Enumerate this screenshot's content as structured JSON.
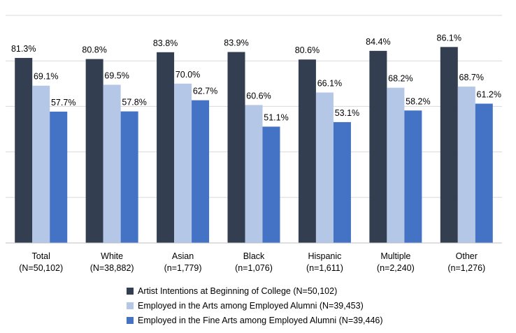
{
  "chart_data": {
    "type": "bar",
    "title": "",
    "xlabel": "",
    "ylabel": "",
    "ylim": [
      0,
      100
    ],
    "grid": true,
    "legend_position": "bottom",
    "categories": [
      {
        "name": "Total",
        "n": "(N=50,102)"
      },
      {
        "name": "White",
        "n": "(N=38,882)"
      },
      {
        "name": "Asian",
        "n": "(n=1,779)"
      },
      {
        "name": "Black",
        "n": "(n=1,076)"
      },
      {
        "name": "Hispanic",
        "n": "(n=1,611)"
      },
      {
        "name": "Multiple",
        "n": "(n=2,240)"
      },
      {
        "name": "Other",
        "n": "(n=1,276)"
      }
    ],
    "series": [
      {
        "name": "Artist Intentions at Beginning of College (N=50,102)",
        "color": "#333f50",
        "values": [
          81.3,
          80.8,
          83.8,
          83.9,
          80.6,
          84.4,
          86.1
        ],
        "labels": [
          "81.3%",
          "80.8%",
          "83.8%",
          "83.9%",
          "80.6%",
          "84.4%",
          "86.1%"
        ]
      },
      {
        "name": "Employed in the Arts among Employed Alumni (N=39,453)",
        "color": "#b4c7e7",
        "values": [
          69.1,
          69.5,
          70.0,
          60.6,
          66.1,
          68.2,
          68.7
        ],
        "labels": [
          "69.1%",
          "69.5%",
          "70.0%",
          "60.6%",
          "66.1%",
          "68.2%",
          "68.7%"
        ]
      },
      {
        "name": "Employed in the Fine Arts among Employed Alumni (N=39,446)",
        "color": "#4472c4",
        "values": [
          57.7,
          57.8,
          62.7,
          51.1,
          53.1,
          58.2,
          61.2
        ],
        "labels": [
          "57.7%",
          "57.8%",
          "62.7%",
          "51.1%",
          "53.1%",
          "58.2%",
          "61.2%"
        ]
      }
    ]
  }
}
